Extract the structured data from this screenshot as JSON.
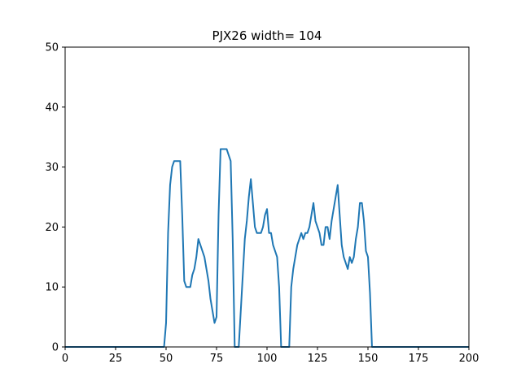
{
  "chart_data": {
    "type": "line",
    "title": "PJX26 width= 104",
    "xlabel": "",
    "ylabel": "",
    "xlim": [
      0,
      200
    ],
    "ylim": [
      0,
      50
    ],
    "xticks": [
      "0",
      "25",
      "50",
      "75",
      "100",
      "125",
      "150",
      "175",
      "200"
    ],
    "yticks": [
      "0",
      "10",
      "20",
      "30",
      "40",
      "50"
    ],
    "grid": false,
    "line_color": "#1f77b4",
    "series": [
      {
        "x": [
          0,
          49,
          50,
          51,
          52,
          53,
          54,
          55,
          56,
          57,
          58,
          59,
          60,
          61,
          62,
          63,
          64,
          65,
          66,
          67,
          68,
          69,
          70,
          71,
          72,
          73,
          74,
          75,
          76,
          77,
          78,
          79,
          80,
          81,
          82,
          83,
          84,
          85,
          86,
          87,
          88,
          89,
          90,
          91,
          92,
          93,
          94,
          95,
          96,
          97,
          98,
          99,
          100,
          101,
          102,
          103,
          104,
          105,
          106,
          107,
          108,
          109,
          110,
          111,
          112,
          113,
          114,
          115,
          116,
          117,
          118,
          119,
          120,
          121,
          122,
          123,
          124,
          125,
          126,
          127,
          128,
          129,
          130,
          131,
          132,
          133,
          134,
          135,
          136,
          137,
          138,
          139,
          140,
          141,
          142,
          143,
          144,
          145,
          146,
          147,
          148,
          149,
          150,
          151,
          152,
          153,
          200
        ],
        "y": [
          0,
          0,
          4,
          19,
          27,
          30,
          31,
          31,
          31,
          31,
          22,
          11,
          10,
          10,
          10,
          12,
          13,
          15,
          18,
          17,
          16,
          15,
          13,
          11,
          8,
          6,
          4,
          5,
          22,
          33,
          33,
          33,
          33,
          32,
          31,
          18,
          0,
          0,
          0,
          6,
          12,
          18,
          21,
          25,
          28,
          24,
          20,
          19,
          19,
          19,
          20,
          22,
          23,
          19,
          19,
          17,
          16,
          15,
          10,
          0,
          0,
          0,
          0,
          0,
          10,
          13,
          15,
          17,
          18,
          19,
          18,
          19,
          19,
          20,
          22,
          24,
          21,
          20,
          19,
          17,
          17,
          20,
          20,
          18,
          21,
          23,
          25,
          27,
          22,
          17,
          15,
          14,
          13,
          15,
          14,
          15,
          18,
          20,
          24,
          24,
          21,
          16,
          15,
          9,
          0,
          0,
          0
        ]
      }
    ]
  }
}
